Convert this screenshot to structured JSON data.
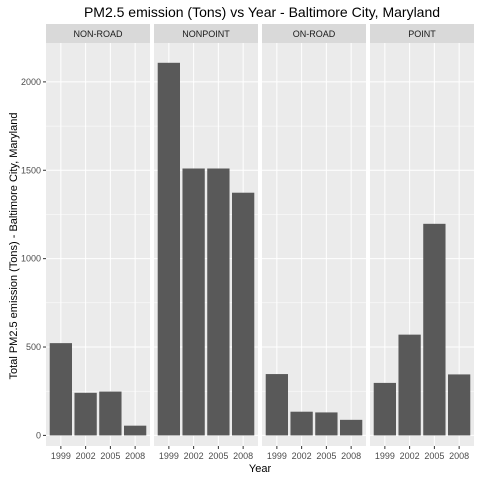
{
  "chart_data": {
    "type": "bar",
    "title": "PM2.5 emission (Tons) vs Year - Baltimore City, Maryland",
    "xlabel": "Year",
    "ylabel": "Total PM2.5 emission (Tons) - Baltimore City, Maryland",
    "categories": [
      "1999",
      "2002",
      "2005",
      "2008"
    ],
    "ylim": [
      -60,
      2220
    ],
    "yticks": [
      0,
      500,
      1000,
      1500,
      2000
    ],
    "grid": true,
    "facets": [
      {
        "name": "NON-ROAD",
        "values": [
          522,
          241,
          248,
          55
        ]
      },
      {
        "name": "NONPOINT",
        "values": [
          2108,
          1510,
          1510,
          1373
        ]
      },
      {
        "name": "ON-ROAD",
        "values": [
          347,
          134,
          130,
          88
        ]
      },
      {
        "name": "POINT",
        "values": [
          297,
          570,
          1197,
          345
        ]
      }
    ],
    "colors": {
      "bar": "#595959",
      "panel_background": "#ebebeb",
      "strip_background": "#d9d9d9",
      "gridline": "#ffffff"
    }
  }
}
